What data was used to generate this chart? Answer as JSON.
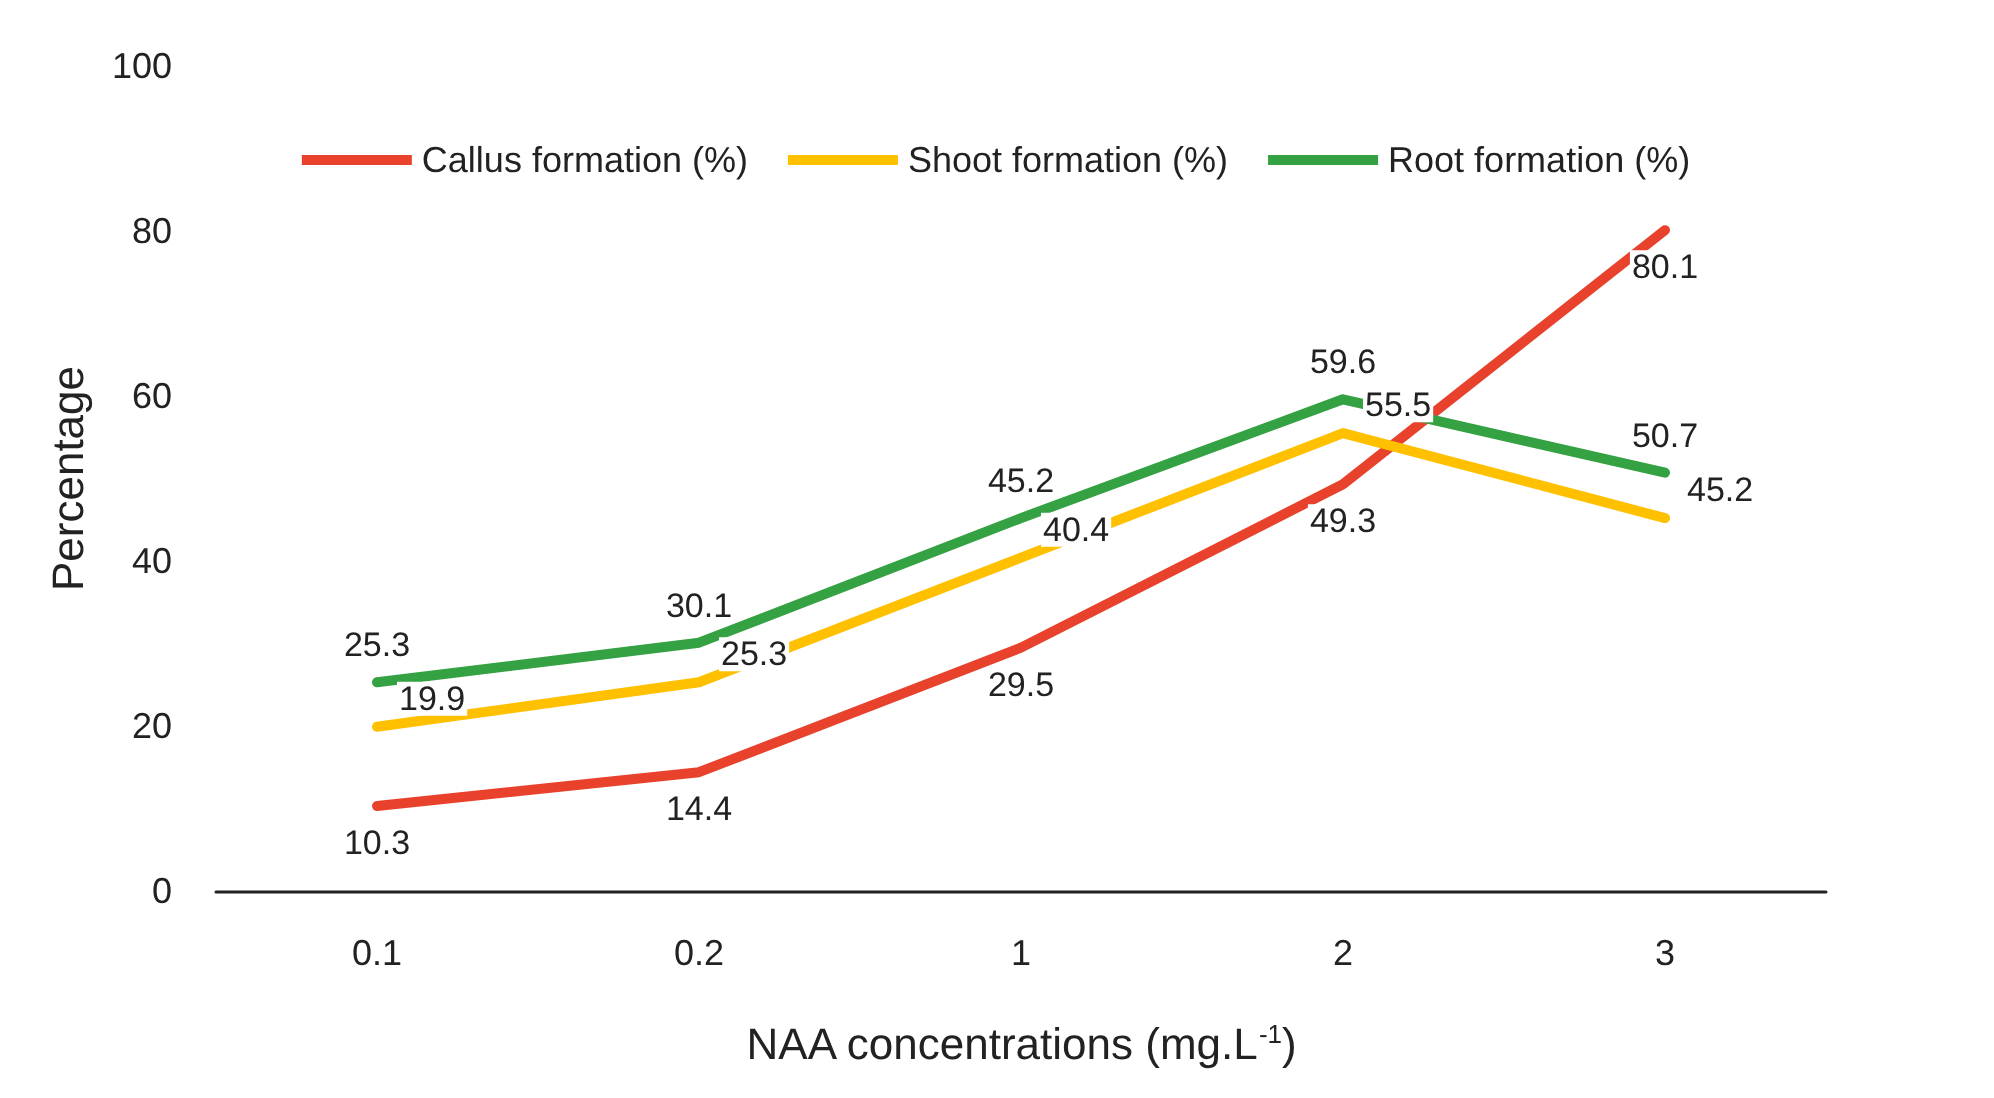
{
  "chart_data": {
    "type": "line",
    "xlabel": "NAA concentrations (mg.L$^{-1}$)",
    "ylabel": "Percentage",
    "categories": [
      "0.1",
      "0.2",
      "1",
      "2",
      "3"
    ],
    "series": [
      {
        "name": "Callus formation (%)",
        "color": "#e8412c",
        "values": [
          10.3,
          14.4,
          29.5,
          49.3,
          80.1
        ]
      },
      {
        "name": "Shoot formation (%)",
        "color": "#ffc000",
        "values": [
          19.9,
          25.3,
          40.4,
          55.5,
          45.2
        ]
      },
      {
        "name": "Root formation (%)",
        "color": "#34a143",
        "values": [
          25.3,
          30.1,
          45.2,
          59.6,
          50.7
        ]
      }
    ],
    "ylim": [
      0,
      100
    ],
    "yticks": [
      0,
      20,
      40,
      60,
      80,
      100
    ],
    "grid": false,
    "legend": "top",
    "marker": "none",
    "line_style": "solid",
    "data_labels": true
  }
}
